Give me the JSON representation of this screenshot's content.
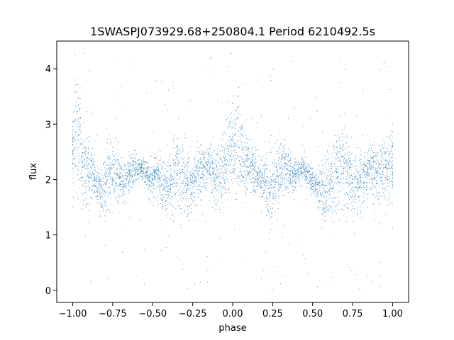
{
  "chart_data": {
    "type": "scatter",
    "title": "1SWASPJ073929.68+250804.1 Period 6210492.5s",
    "xlabel": "phase",
    "ylabel": "flux",
    "xlim": [
      -1.1,
      1.1
    ],
    "ylim": [
      -0.22,
      4.5
    ],
    "xticks": [
      -1.0,
      -0.75,
      -0.5,
      -0.25,
      0.0,
      0.25,
      0.5,
      0.75,
      1.0
    ],
    "xtick_labels": [
      "−1.00",
      "−0.75",
      "−0.50",
      "−0.25",
      "0.00",
      "0.25",
      "0.50",
      "0.75",
      "1.00"
    ],
    "yticks": [
      0,
      1,
      2,
      3,
      4
    ],
    "ytick_labels": [
      "0",
      "1",
      "2",
      "3",
      "4"
    ],
    "grid": false,
    "legend": "none",
    "point_color": "#1f77b4",
    "series": [
      {
        "x": [
          -1.0,
          -0.98,
          -0.96,
          -0.94,
          -0.92,
          -0.9,
          -0.88,
          -0.86,
          -0.84,
          -0.82,
          -0.8,
          -0.78,
          -0.76,
          -0.74,
          -0.72,
          -0.7,
          -0.68,
          -0.66,
          -0.64,
          -0.62,
          -0.6,
          -0.58,
          -0.56,
          -0.54,
          -0.52,
          -0.5,
          -0.48,
          -0.46,
          -0.44,
          -0.42,
          -0.4,
          -0.38,
          -0.36,
          -0.34,
          -0.32,
          -0.3,
          -0.28,
          -0.26,
          -0.24,
          -0.22,
          -0.2,
          -0.18,
          -0.16,
          -0.14,
          -0.12,
          -0.1,
          -0.08,
          -0.06,
          -0.04,
          -0.02,
          0.0,
          0.02,
          0.04,
          0.06,
          0.08,
          0.1,
          0.12,
          0.14,
          0.16,
          0.18,
          0.2,
          0.22,
          0.24,
          0.26,
          0.28,
          0.3,
          0.32,
          0.34,
          0.36,
          0.38,
          0.4,
          0.42,
          0.44,
          0.46,
          0.48,
          0.5,
          0.52,
          0.54,
          0.56,
          0.58,
          0.6,
          0.62,
          0.64,
          0.66,
          0.68,
          0.7,
          0.72,
          0.74,
          0.76,
          0.78,
          0.8,
          0.82,
          0.84,
          0.86,
          0.88,
          0.9,
          0.92,
          0.94,
          0.96,
          0.98,
          1.0
        ],
        "y": [
          2.55,
          2.9,
          2.75,
          2.35,
          2.2,
          2.15,
          2.1,
          2.0,
          1.85,
          1.8,
          1.9,
          2.05,
          2.1,
          2.2,
          2.1,
          1.95,
          1.9,
          2.0,
          2.1,
          2.2,
          2.2,
          2.15,
          2.2,
          2.1,
          2.0,
          2.05,
          2.1,
          2.0,
          1.85,
          1.8,
          1.8,
          1.95,
          2.1,
          2.2,
          2.05,
          2.0,
          1.95,
          1.9,
          2.0,
          2.1,
          2.2,
          2.2,
          2.15,
          2.2,
          2.1,
          2.05,
          2.1,
          2.2,
          2.3,
          2.4,
          2.45,
          2.6,
          2.55,
          2.4,
          2.3,
          2.2,
          2.2,
          2.1,
          2.05,
          2.0,
          2.0,
          1.85,
          1.8,
          1.95,
          2.1,
          2.15,
          2.2,
          2.2,
          2.1,
          2.05,
          2.1,
          2.15,
          2.2,
          2.1,
          2.05,
          2.0,
          1.9,
          1.85,
          1.8,
          1.75,
          1.8,
          1.95,
          2.1,
          2.2,
          2.3,
          2.25,
          2.1,
          2.0,
          1.95,
          1.9,
          2.0,
          2.1,
          2.15,
          2.2,
          2.2,
          2.1,
          2.05,
          2.1,
          2.2,
          2.25,
          2.3
        ],
        "spread": [
          0.55,
          0.9,
          0.8,
          0.6,
          0.45,
          0.45,
          0.4,
          0.35,
          0.3,
          0.35,
          0.45,
          0.5,
          0.55,
          0.5,
          0.45,
          0.4,
          0.35,
          0.35,
          0.3,
          0.25,
          0.2,
          0.2,
          0.2,
          0.2,
          0.25,
          0.25,
          0.3,
          0.35,
          0.4,
          0.45,
          0.5,
          0.5,
          0.55,
          0.6,
          0.55,
          0.5,
          0.45,
          0.45,
          0.45,
          0.45,
          0.4,
          0.4,
          0.35,
          0.35,
          0.4,
          0.45,
          0.5,
          0.55,
          0.6,
          0.7,
          0.75,
          0.8,
          0.75,
          0.6,
          0.5,
          0.45,
          0.4,
          0.35,
          0.3,
          0.35,
          0.4,
          0.5,
          0.55,
          0.5,
          0.45,
          0.45,
          0.4,
          0.35,
          0.3,
          0.25,
          0.2,
          0.2,
          0.25,
          0.2,
          0.2,
          0.2,
          0.25,
          0.3,
          0.45,
          0.5,
          0.5,
          0.55,
          0.55,
          0.6,
          0.65,
          0.6,
          0.55,
          0.5,
          0.45,
          0.45,
          0.45,
          0.45,
          0.4,
          0.4,
          0.45,
          0.5,
          0.5,
          0.5,
          0.55,
          0.55,
          0.55
        ]
      }
    ]
  }
}
